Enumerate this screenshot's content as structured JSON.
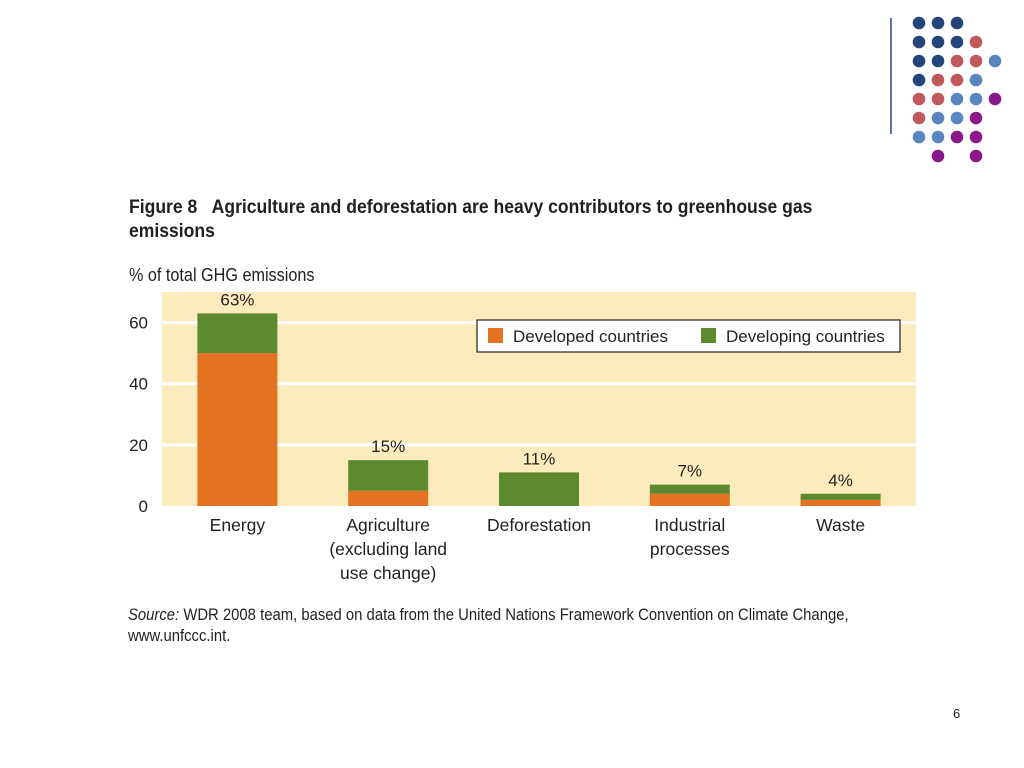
{
  "figure": {
    "number": "Figure 8",
    "title_line1": "Agriculture and deforestation are heavy contributors to greenhouse gas",
    "title_line2": "emissions"
  },
  "colors": {
    "developed": "#e37222",
    "developing": "#5d8a2e",
    "plot_bg": "#fcecbd",
    "gridline": "#ffffff",
    "dot_navy": "#25457a",
    "dot_red": "#c0585c",
    "dot_blue": "#5a86c0",
    "dot_purple": "#8a1889"
  },
  "chart_data": {
    "type": "bar",
    "stacked": true,
    "ylabel": "% of total GHG emissions",
    "ylim": [
      0,
      70
    ],
    "yticks": [
      0,
      20,
      40,
      60
    ],
    "grid": true,
    "legend_position": "top-right",
    "categories": [
      [
        "Energy"
      ],
      [
        "Agriculture",
        "(excluding land",
        "use change)"
      ],
      [
        "Deforestation"
      ],
      [
        "Industrial",
        "processes"
      ],
      [
        "Waste"
      ]
    ],
    "series": [
      {
        "name": "Developed countries",
        "values": [
          50,
          5,
          0,
          4,
          2
        ]
      },
      {
        "name": "Developing countries",
        "values": [
          13,
          10,
          11,
          3,
          2
        ]
      }
    ],
    "total_labels": [
      "63%",
      "15%",
      "11%",
      "7%",
      "4%"
    ],
    "totals": [
      63,
      15,
      11,
      7,
      4
    ]
  },
  "source": {
    "label": "Source:",
    "text": " WDR 2008 team, based on data from the United Nations Framework Convention on Climate Change,",
    "line2": "www.unfccc.int."
  },
  "page_number": "6"
}
